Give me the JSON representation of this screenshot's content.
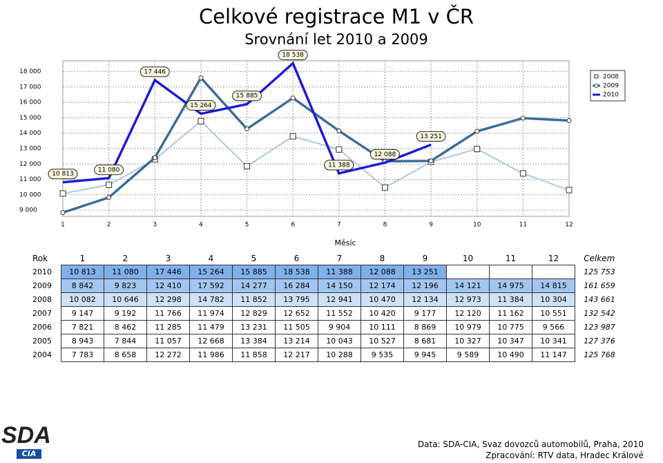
{
  "chart_data": {
    "type": "line",
    "title": "Celkové registrace M1 v ČR",
    "subtitle": "Srovnání let 2010 a 2009",
    "x_label": "Měsíc",
    "categories": [
      "1",
      "2",
      "3",
      "4",
      "5",
      "6",
      "7",
      "8",
      "9",
      "10",
      "11",
      "12"
    ],
    "series": [
      {
        "name": "2008",
        "color": "#a9c9e3",
        "marker": "square",
        "values": [
          10082,
          10646,
          12298,
          14782,
          11852,
          13795,
          12941,
          10470,
          12134,
          12973,
          11384,
          10304
        ]
      },
      {
        "name": "2009",
        "color": "#3d6c98",
        "marker": "circle",
        "values": [
          8842,
          9823,
          12410,
          17592,
          14277,
          16284,
          14150,
          12174,
          12196,
          14121,
          14975,
          14815
        ]
      },
      {
        "name": "2010",
        "color": "#1c1cd2",
        "marker": null,
        "values": [
          10813,
          11080,
          17446,
          15264,
          15885,
          18538,
          11388,
          12088,
          13251,
          null,
          null,
          null
        ],
        "value_labels": [
          "10 813",
          "11 080",
          "17 446",
          "15 264",
          "15 885",
          "18 538",
          "11 388",
          "12 088",
          "13 251",
          null,
          null,
          null
        ]
      }
    ],
    "ylim": [
      8600,
      18700
    ],
    "yticks": [
      {
        "value": 9000,
        "label": "9 000"
      },
      {
        "value": 10000,
        "label": "10 000"
      },
      {
        "value": 11000,
        "label": "11 000"
      },
      {
        "value": 12000,
        "label": "12 000"
      },
      {
        "value": 13000,
        "label": "13 000"
      },
      {
        "value": 14000,
        "label": "14 000"
      },
      {
        "value": 15000,
        "label": "15 000"
      },
      {
        "value": 16000,
        "label": "16 000"
      },
      {
        "value": 17000,
        "label": "17 000"
      },
      {
        "value": 18000,
        "label": "18 000"
      }
    ],
    "grid": true,
    "legend": "top-right"
  },
  "table": {
    "header": [
      "Rok",
      "1",
      "2",
      "3",
      "4",
      "5",
      "6",
      "7",
      "8",
      "9",
      "10",
      "11",
      "12",
      "Celkem"
    ],
    "rows": [
      [
        "2010",
        "10 813",
        "11 080",
        "17 446",
        "15 264",
        "15 885",
        "18 538",
        "11 388",
        "12 088",
        "13 251",
        null,
        null,
        null,
        "125 753"
      ],
      [
        "2009",
        "8 842",
        "9 823",
        "12 410",
        "17 592",
        "14 277",
        "16 284",
        "14 150",
        "12 174",
        "12 196",
        "14 121",
        "14 975",
        "14 815",
        "161 659"
      ],
      [
        "2008",
        "10 082",
        "10 646",
        "12 298",
        "14 782",
        "11 852",
        "13 795",
        "12 941",
        "10 470",
        "12 134",
        "12 973",
        "11 384",
        "10 304",
        "143 661"
      ],
      [
        "2007",
        "9 147",
        "9 192",
        "11 766",
        "11 974",
        "12 829",
        "12 652",
        "11 552",
        "10 420",
        "9 177",
        "12 120",
        "11 162",
        "10 551",
        "132 542"
      ],
      [
        "2006",
        "7 821",
        "8 462",
        "11 285",
        "11 479",
        "13 231",
        "11 505",
        "9 904",
        "10 111",
        "8 869",
        "10 979",
        "10 775",
        "9 566",
        "123 987"
      ],
      [
        "2005",
        "8 943",
        "7 844",
        "11 057",
        "12 668",
        "13 384",
        "13 214",
        "10 043",
        "10 527",
        "8 681",
        "10 327",
        "10 347",
        "10 341",
        "127 376"
      ],
      [
        "2004",
        "7 783",
        "8 658",
        "12 272",
        "11 986",
        "11 858",
        "12 217",
        "10 288",
        "9 535",
        "9 945",
        "9 589",
        "10 490",
        "11 147",
        "125 768"
      ]
    ]
  },
  "footer": {
    "source": "Data: SDA-CIA, Svaz dovozců automobilů, Praha, 2010",
    "processed": "Zpracování: RTV data, Hradec Králové"
  },
  "logo": {
    "name": "SDA",
    "sub": "CIA"
  }
}
